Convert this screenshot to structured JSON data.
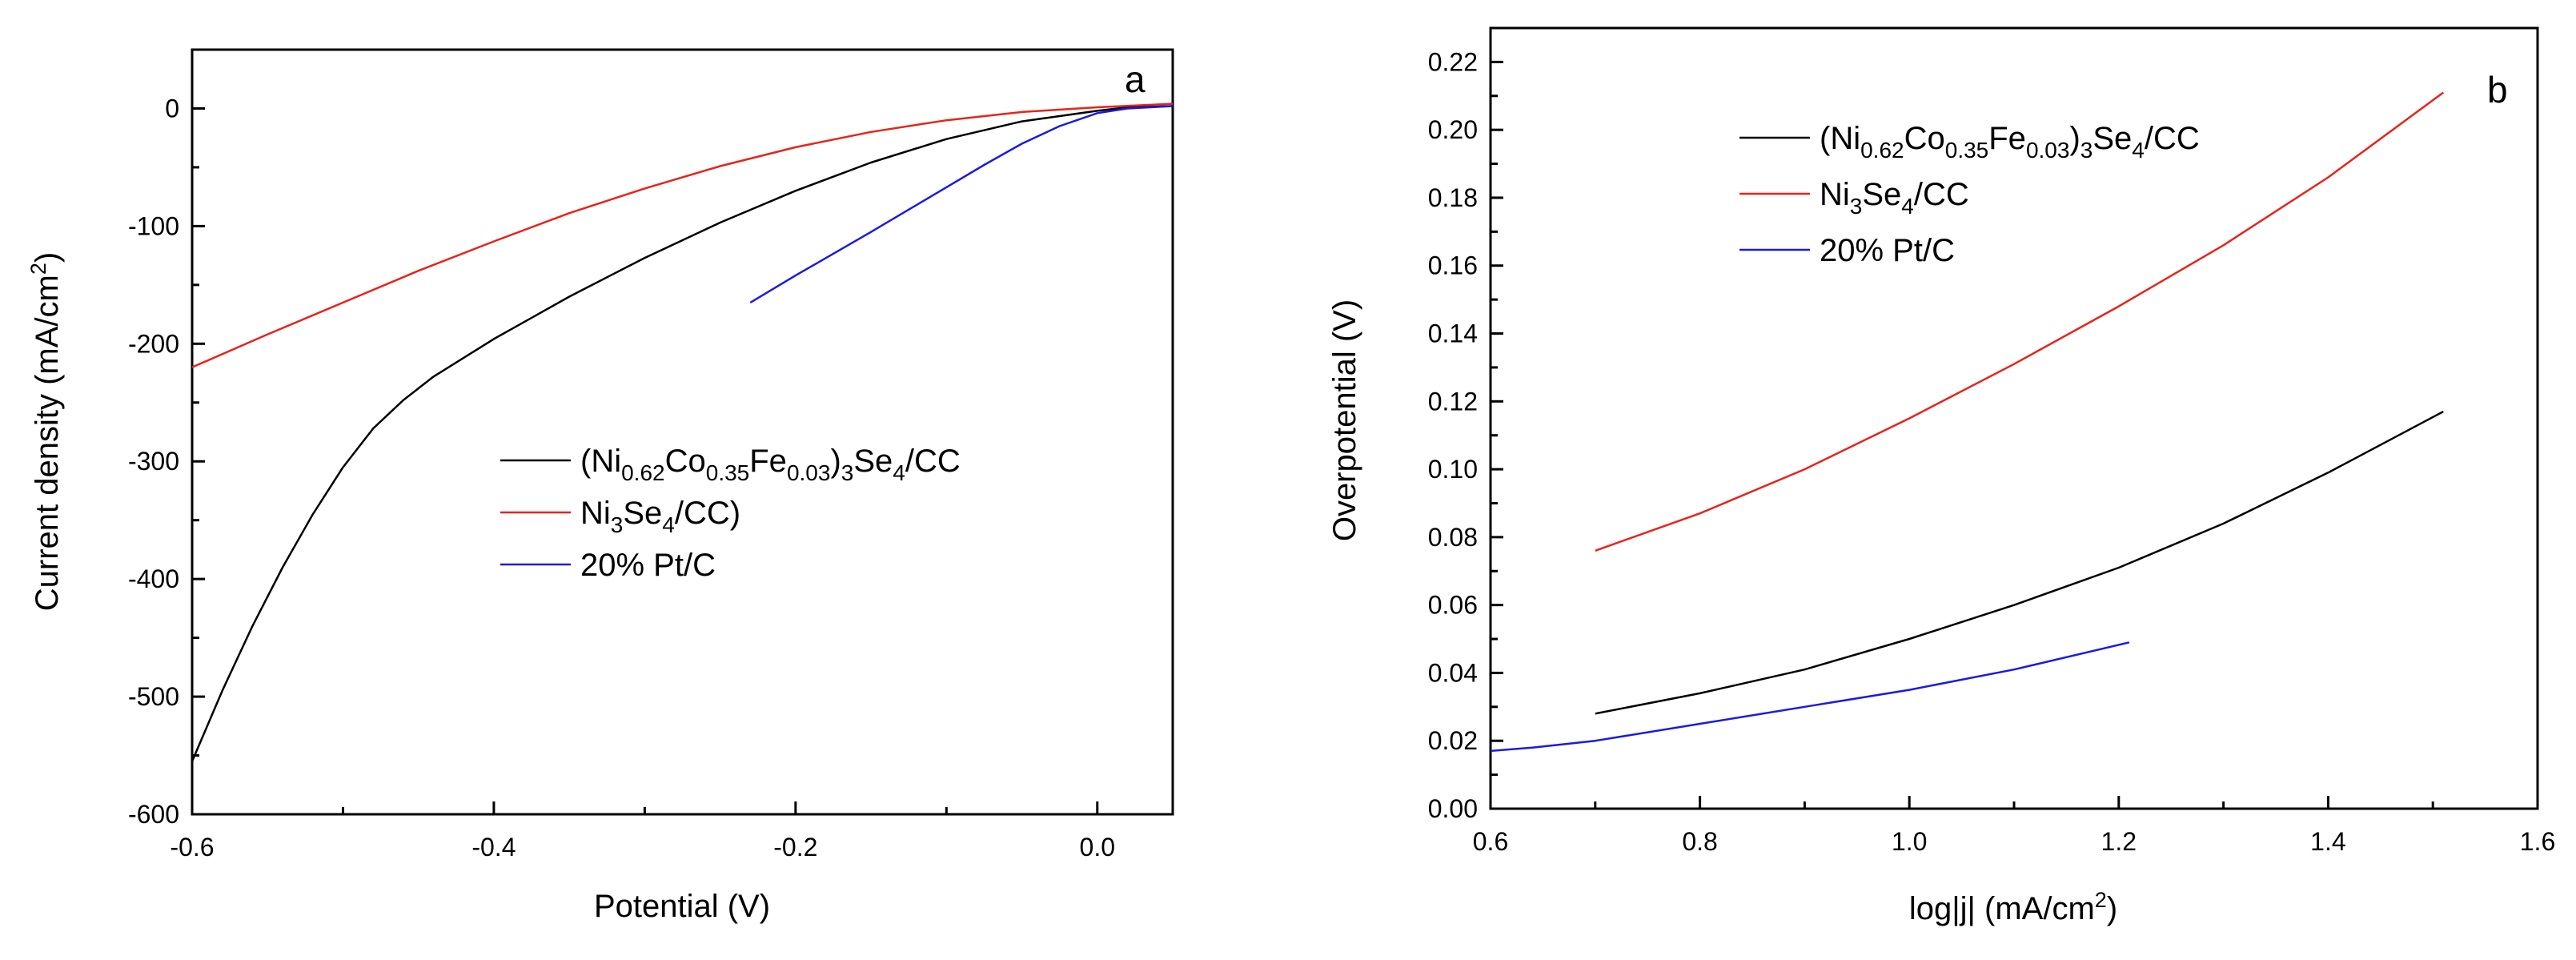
{
  "chart_data": [
    {
      "type": "line",
      "panel_label": "a",
      "xlabel": "Potential (V)",
      "ylabel": "Current density (mA/cm²)",
      "ylabel_parts": {
        "base": "Current density (mA/cm",
        "sup": "2",
        "tail": ")"
      },
      "xlim": [
        -0.6,
        0.05
      ],
      "ylim": [
        -600,
        50
      ],
      "xticks": [
        -0.6,
        -0.4,
        -0.2,
        0.0
      ],
      "xtick_labels": [
        "-0.6",
        "-0.4",
        "-0.2",
        "0.0"
      ],
      "yticks": [
        0,
        -100,
        -200,
        -300,
        -400,
        -500,
        -600
      ],
      "ytick_labels": [
        "0",
        "-100",
        "-200",
        "-300",
        "-400",
        "-500",
        "-600"
      ],
      "legend_position": "center",
      "series": [
        {
          "name": "(Ni0.62Co0.35Fe0.03)3Se4/CC",
          "legend_parts": [
            [
              "",
              "("
            ],
            [
              "",
              "Ni"
            ],
            [
              "sub",
              "0.62"
            ],
            [
              "",
              "Co"
            ],
            [
              "sub",
              "0.35"
            ],
            [
              "",
              "Fe"
            ],
            [
              "sub",
              "0.03"
            ],
            [
              "",
              ")"
            ],
            [
              "sub",
              "3"
            ],
            [
              "",
              "Se"
            ],
            [
              "sub",
              "4"
            ],
            [
              "",
              "/CC"
            ]
          ],
          "color": "#000000",
          "x": [
            -0.6,
            -0.58,
            -0.56,
            -0.54,
            -0.52,
            -0.5,
            -0.48,
            -0.46,
            -0.44,
            -0.42,
            -0.4,
            -0.35,
            -0.3,
            -0.25,
            -0.2,
            -0.15,
            -0.1,
            -0.05,
            0.0,
            0.02,
            0.05
          ],
          "y": [
            -555,
            -495,
            -440,
            -390,
            -345,
            -305,
            -272,
            -248,
            -228,
            -212,
            -196,
            -160,
            -127,
            -97,
            -70,
            -46,
            -26,
            -11,
            -2,
            1,
            2
          ]
        },
        {
          "name": "Ni3Se4/CC)",
          "legend_parts": [
            [
              "",
              "Ni"
            ],
            [
              "sub",
              "3"
            ],
            [
              "",
              "Se"
            ],
            [
              "sub",
              "4"
            ],
            [
              "",
              "/CC)"
            ]
          ],
          "color": "#e8231a",
          "x": [
            -0.6,
            -0.55,
            -0.5,
            -0.45,
            -0.4,
            -0.35,
            -0.3,
            -0.25,
            -0.2,
            -0.15,
            -0.1,
            -0.05,
            0.0,
            0.05
          ],
          "y": [
            -220,
            -192,
            -165,
            -138,
            -113,
            -89,
            -68,
            -49,
            -33,
            -20,
            -10,
            -3,
            1,
            4
          ]
        },
        {
          "name": "20% Pt/C",
          "legend_parts": [
            [
              "",
              "20% Pt/C"
            ]
          ],
          "color": "#1a1ae6",
          "x": [
            -0.23,
            -0.2,
            -0.15,
            -0.1,
            -0.075,
            -0.05,
            -0.025,
            0.0,
            0.02,
            0.05
          ],
          "y": [
            -165,
            -142,
            -105,
            -67,
            -48,
            -30,
            -15,
            -4,
            0,
            2
          ]
        }
      ]
    },
    {
      "type": "line",
      "panel_label": "b",
      "xlabel": "log|j| (mA/cm²)",
      "xlabel_parts": {
        "base": "log|j| (mA/cm",
        "sup": "2",
        "tail": ")"
      },
      "ylabel": "Overpotential (V)",
      "xlim": [
        0.6,
        1.6
      ],
      "ylim": [
        0.0,
        0.23
      ],
      "xticks": [
        0.6,
        0.8,
        1.0,
        1.2,
        1.4,
        1.6
      ],
      "xtick_labels": [
        "0.6",
        "0.8",
        "1.0",
        "1.2",
        "1.4",
        "1.6"
      ],
      "yticks": [
        0.0,
        0.02,
        0.04,
        0.06,
        0.08,
        0.1,
        0.12,
        0.14,
        0.16,
        0.18,
        0.2,
        0.22
      ],
      "ytick_labels": [
        "0.00",
        "0.02",
        "0.04",
        "0.06",
        "0.08",
        "0.10",
        "0.12",
        "0.14",
        "0.16",
        "0.18",
        "0.20",
        "0.22"
      ],
      "legend_position": "top-left",
      "series": [
        {
          "name": "(Ni0.62Co0.35Fe0.03)3Se4/CC",
          "legend_parts": [
            [
              "",
              "("
            ],
            [
              "",
              "Ni"
            ],
            [
              "sub",
              "0.62"
            ],
            [
              "",
              "Co"
            ],
            [
              "sub",
              "0.35"
            ],
            [
              "",
              "Fe"
            ],
            [
              "sub",
              "0.03"
            ],
            [
              "",
              ")"
            ],
            [
              "sub",
              "3"
            ],
            [
              "",
              "Se"
            ],
            [
              "sub",
              "4"
            ],
            [
              "",
              "/CC"
            ]
          ],
          "color": "#000000",
          "x": [
            0.7,
            0.8,
            0.9,
            1.0,
            1.1,
            1.2,
            1.3,
            1.4,
            1.51
          ],
          "y": [
            0.028,
            0.034,
            0.041,
            0.05,
            0.06,
            0.071,
            0.084,
            0.099,
            0.117
          ]
        },
        {
          "name": "Ni3Se4/CC",
          "legend_parts": [
            [
              "",
              "Ni"
            ],
            [
              "sub",
              "3"
            ],
            [
              "",
              "Se"
            ],
            [
              "sub",
              "4"
            ],
            [
              "",
              "/CC"
            ]
          ],
          "color": "#e8231a",
          "x": [
            0.7,
            0.8,
            0.9,
            1.0,
            1.1,
            1.2,
            1.3,
            1.4,
            1.51
          ],
          "y": [
            0.076,
            0.087,
            0.1,
            0.115,
            0.131,
            0.148,
            0.166,
            0.186,
            0.211
          ]
        },
        {
          "name": "20% Pt/C",
          "legend_parts": [
            [
              "",
              "20% Pt/C"
            ]
          ],
          "color": "#1a1ae6",
          "x": [
            0.6,
            0.64,
            0.7,
            0.8,
            0.9,
            1.0,
            1.1,
            1.21
          ],
          "y": [
            0.017,
            0.018,
            0.02,
            0.025,
            0.03,
            0.035,
            0.041,
            0.049
          ]
        }
      ]
    }
  ]
}
